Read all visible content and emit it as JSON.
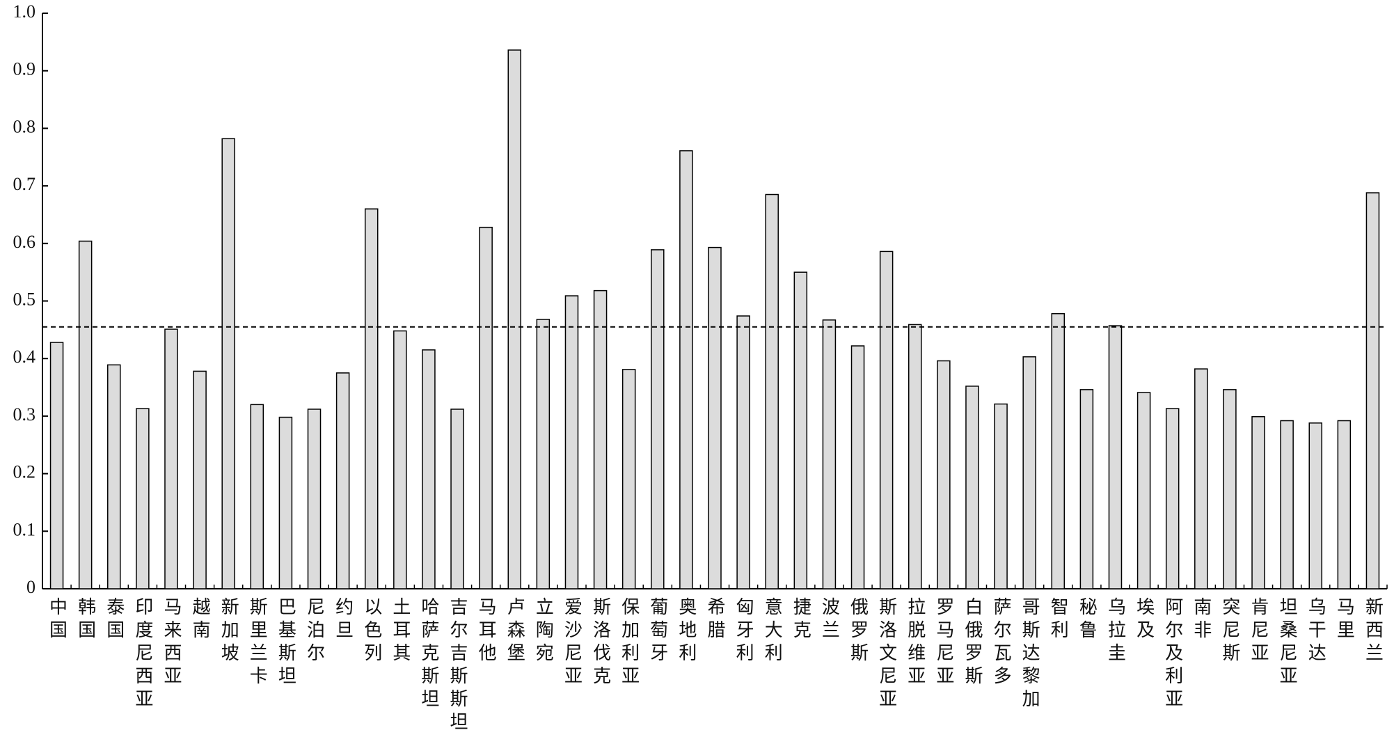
{
  "chart_data": {
    "type": "bar",
    "categories": [
      "中国",
      "韩国",
      "泰国",
      "印度尼西亚",
      "马来西亚",
      "越南",
      "新加坡",
      "斯里兰卡",
      "巴基斯坦",
      "尼泊尔",
      "约旦",
      "以色列",
      "土耳其",
      "哈萨克斯坦",
      "吉尔吉斯斯坦",
      "马耳他",
      "卢森堡",
      "立陶宛",
      "爱沙尼亚",
      "斯洛伐克",
      "保加利亚",
      "葡萄牙",
      "奥地利",
      "希腊",
      "匈牙利",
      "意大利",
      "捷克",
      "波兰",
      "俄罗斯",
      "斯洛文尼亚",
      "拉脱维亚",
      "罗马尼亚",
      "白俄罗斯",
      "萨尔瓦多",
      "哥斯达黎加",
      "智利",
      "秘鲁",
      "乌拉圭",
      "埃及",
      "阿尔及利亚",
      "南非",
      "突尼斯",
      "肯尼亚",
      "坦桑尼亚",
      "乌干达",
      "马里",
      "新西兰"
    ],
    "values": [
      0.428,
      0.604,
      0.389,
      0.313,
      0.451,
      0.378,
      0.782,
      0.32,
      0.298,
      0.312,
      0.375,
      0.66,
      0.448,
      0.415,
      0.312,
      0.628,
      0.936,
      0.468,
      0.509,
      0.518,
      0.381,
      0.589,
      0.761,
      0.593,
      0.474,
      0.685,
      0.55,
      0.467,
      0.422,
      0.586,
      0.459,
      0.396,
      0.352,
      0.321,
      0.403,
      0.478,
      0.346,
      0.457,
      0.341,
      0.313,
      0.382,
      0.346,
      0.299,
      0.292,
      0.288,
      0.292,
      0.688
    ],
    "color": "#dcdcdc",
    "reference_line": 0.455,
    "ylim": [
      0,
      1
    ],
    "yticks": [
      0,
      0.1,
      0.2,
      0.3,
      0.4,
      0.5,
      0.6,
      0.7,
      0.8,
      0.9,
      {
        "value": 1,
        "label": "1.0"
      }
    ]
  }
}
